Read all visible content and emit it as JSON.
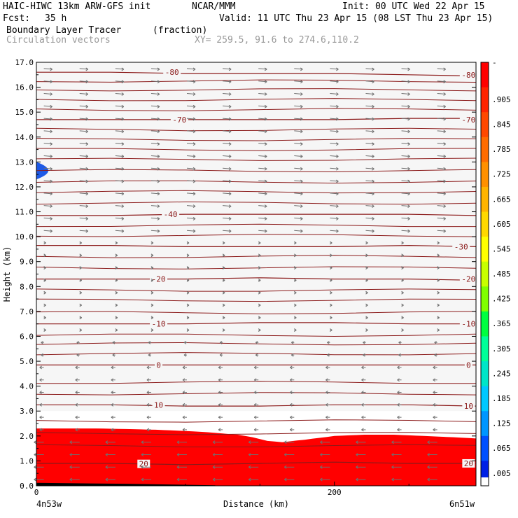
{
  "header": {
    "model": "HAIC-HIWC 13km ARW-GFS init",
    "org": "NCAR/MMM",
    "init": "Init: 00 UTC Wed 22 Apr 15",
    "fcst_label": "Fcst:",
    "fcst_value": "35 h",
    "valid": "Valid: 11 UTC Thu 23 Apr 15 (08 LST Thu 23 Apr 15)",
    "field1": "Boundary Layer Tracer",
    "field1_units": "(fraction)",
    "field2": "Circulation vectors",
    "xy": "XY= 259.5, 91.6 to 274.6,110.2"
  },
  "chart_data": {
    "type": "heatmap",
    "title": "Boundary Layer Tracer",
    "units": "(fraction)",
    "xlabel": "Distance (km)",
    "ylabel": "Height (km)",
    "xlim": [
      0,
      295
    ],
    "ylim": [
      0.0,
      17.0
    ],
    "x_ticks": [
      0,
      200
    ],
    "x_endpoints": [
      "4n53w",
      "6n51w"
    ],
    "y_ticks": [
      "0.0",
      "1.0",
      "2.0",
      "3.0",
      "4.0",
      "5.0",
      "6.0",
      "7.0",
      "8.0",
      "9.0",
      "10.0",
      "11.0",
      "12.0",
      "13.0",
      "14.0",
      "15.0",
      "16.0",
      "17.0"
    ],
    "tracer_top_km": [
      [
        0,
        2.3
      ],
      [
        20,
        2.3
      ],
      [
        40,
        2.3
      ],
      [
        60,
        2.28
      ],
      [
        80,
        2.25
      ],
      [
        100,
        2.2
      ],
      [
        115,
        2.15
      ],
      [
        125,
        2.1
      ],
      [
        135,
        2.05
      ],
      [
        145,
        1.95
      ],
      [
        155,
        1.8
      ],
      [
        165,
        1.75
      ],
      [
        180,
        1.85
      ],
      [
        200,
        2.0
      ],
      [
        220,
        2.05
      ],
      [
        240,
        2.05
      ],
      [
        260,
        2.0
      ],
      [
        280,
        1.95
      ],
      [
        295,
        1.9
      ]
    ],
    "blob": {
      "x_km": [
        0,
        12
      ],
      "height_km": [
        12.3,
        13.0
      ]
    },
    "colorbar": {
      "labels": [
        ".905",
        ".845",
        ".785",
        ".725",
        ".665",
        ".605",
        ".545",
        ".485",
        ".425",
        ".365",
        ".305",
        ".245",
        ".185",
        ".125",
        ".065",
        ".005"
      ],
      "colors": [
        "#ff0000",
        "#ff2400",
        "#ff4800",
        "#ff6c00",
        "#ff9000",
        "#ffb400",
        "#ffd800",
        "#ffff00",
        "#c8ff00",
        "#80ff00",
        "#00ff40",
        "#00ff99",
        "#00e6c8",
        "#00c8ff",
        "#0096ff",
        "#0050ff",
        "#0020e6"
      ]
    },
    "temperature_contours": [
      {
        "label": "20",
        "heights_km": [
          0.9,
          0.9,
          0.85,
          0.9,
          0.95,
          0.9,
          0.9
        ]
      },
      {
        "label": "10",
        "heights_km": [
          3.25,
          3.25,
          3.2,
          3.2,
          3.25,
          3.25,
          3.2
        ]
      },
      {
        "label": "0",
        "heights_km": [
          4.85,
          4.85,
          4.85,
          4.85,
          4.85,
          4.85,
          4.85
        ]
      },
      {
        "label": "-10",
        "heights_km": [
          6.5,
          6.5,
          6.5,
          6.55,
          6.55,
          6.5,
          6.5
        ]
      },
      {
        "label": "-20",
        "heights_km": [
          8.3,
          8.3,
          8.3,
          8.35,
          8.3,
          8.3,
          8.25
        ]
      },
      {
        "label": "-30",
        "heights_km": [
          9.65,
          9.65,
          9.6,
          9.6,
          9.6,
          9.65,
          9.6
        ]
      },
      {
        "label": "-40",
        "heights_km": [
          10.85,
          10.85,
          10.9,
          10.9,
          10.9,
          10.9,
          10.85
        ]
      },
      {
        "label": "-70",
        "heights_km": [
          14.7,
          14.7,
          14.7,
          14.7,
          14.7,
          14.75,
          14.75
        ]
      },
      {
        "label": "-80",
        "heights_km": [
          16.6,
          16.6,
          16.55,
          16.55,
          16.55,
          16.5,
          16.45
        ]
      }
    ],
    "unlabeled_isotherm_heights_km": [
      1.6,
      2.1,
      2.6,
      3.7,
      4.15,
      5.3,
      5.7,
      6.05,
      6.95,
      7.45,
      7.85,
      8.75,
      9.2,
      10.05,
      10.45,
      11.35,
      11.8,
      12.2,
      12.65,
      13.1,
      13.5,
      13.9,
      14.3,
      15.1,
      15.5,
      15.9,
      16.25
    ],
    "contour_label_positions_km": {
      "20": [
        [
          72,
          0.88
        ],
        [
          290,
          0.9
        ]
      ],
      "10": [
        [
          82,
          3.25
        ],
        [
          290,
          3.2
        ]
      ],
      "0": [
        [
          82,
          4.85
        ],
        [
          290,
          4.85
        ]
      ],
      "-10": [
        [
          82,
          6.5
        ],
        [
          290,
          6.5
        ]
      ],
      "-20": [
        [
          82,
          8.3
        ],
        [
          290,
          8.3
        ]
      ],
      "-30": [
        [
          285,
          9.6
        ]
      ],
      "-40": [
        [
          90,
          10.9
        ]
      ],
      "-70": [
        [
          96,
          14.7
        ],
        [
          290,
          14.7
        ]
      ],
      "-80": [
        [
          91,
          16.6
        ],
        [
          290,
          16.5
        ]
      ]
    }
  }
}
